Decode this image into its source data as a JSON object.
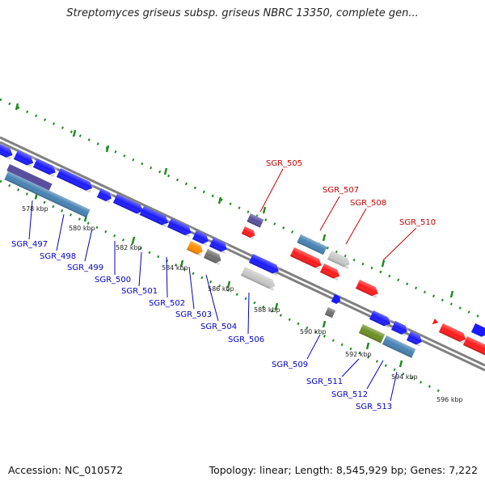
{
  "title": "Streptomyces griseus subsp. griseus NBRC 13350, complete gen...",
  "footer": {
    "accession": "Accession: NC_010572",
    "stats": "Topology: linear; Length: 8,545,929 bp; Genes: 7,222"
  },
  "colors": {
    "forward_label": "#cc0000",
    "reverse_label": "#0000cc",
    "backbone": "#808080",
    "tick": "#1e8c1e"
  },
  "scale_labels": [
    "578 kbp",
    "580 kbp",
    "582 kbp",
    "584 kbp",
    "586 kbp",
    "588 kbp",
    "590 kbp",
    "592 kbp",
    "594 kbp",
    "596 kbp"
  ],
  "gene_labels": {
    "forward": [
      "SGR_505",
      "SGR_507",
      "SGR_508",
      "SGR_510"
    ],
    "reverse": [
      "SGR_497",
      "SGR_498",
      "SGR_499",
      "SGR_500",
      "SGR_501",
      "SGR_502",
      "SGR_503",
      "SGR_504",
      "SGR_506",
      "SGR_509",
      "SGR_511",
      "SGR_512",
      "SGR_513"
    ]
  },
  "features": [
    {
      "name": "top-blue-1",
      "color": "#1a1aff"
    },
    {
      "name": "top-blue-2",
      "color": "#1a1aff"
    },
    {
      "name": "top-blue-3",
      "color": "#1a1aff"
    },
    {
      "name": "top-blue-4",
      "color": "#1a1aff"
    },
    {
      "name": "purple-1",
      "color": "#5a4f9c"
    },
    {
      "name": "steel-1",
      "color": "#4682b4"
    },
    {
      "name": "blue-5",
      "color": "#1a1aff"
    },
    {
      "name": "blue-6",
      "color": "#1a1aff"
    },
    {
      "name": "blue-7",
      "color": "#1a1aff"
    },
    {
      "name": "blue-8",
      "color": "#1a1aff"
    },
    {
      "name": "blue-9",
      "color": "#1a1aff"
    },
    {
      "name": "blue-10",
      "color": "#1a1aff"
    },
    {
      "name": "orange-1",
      "color": "#ff8c00"
    },
    {
      "name": "gray-1",
      "color": "#707070"
    },
    {
      "name": "purple-2",
      "color": "#5a4f9c"
    },
    {
      "name": "red-505",
      "color": "#ff1a1a"
    },
    {
      "name": "blue-11",
      "color": "#1a1aff"
    },
    {
      "name": "lightgray-1",
      "color": "#c8c8c8"
    },
    {
      "name": "steel-507",
      "color": "#4682b4"
    },
    {
      "name": "red-1",
      "color": "#ff1a1a"
    },
    {
      "name": "lightgray-508",
      "color": "#c8c8c8"
    },
    {
      "name": "red-2",
      "color": "#ff1a1a"
    },
    {
      "name": "red-3",
      "color": "#ff1a1a"
    },
    {
      "name": "blue-12",
      "color": "#1a1aff"
    },
    {
      "name": "gray-2",
      "color": "#707070"
    },
    {
      "name": "blue-13",
      "color": "#1a1aff"
    },
    {
      "name": "blue-14",
      "color": "#1a1aff"
    },
    {
      "name": "olive-1",
      "color": "#6b8e23"
    },
    {
      "name": "steel-2",
      "color": "#4682b4"
    },
    {
      "name": "blue-15",
      "color": "#1a1aff"
    },
    {
      "name": "red-4",
      "color": "#ff1a1a"
    },
    {
      "name": "red-5",
      "color": "#ff1a1a"
    },
    {
      "name": "red-6",
      "color": "#ff1a1a"
    },
    {
      "name": "red-7",
      "color": "#ff1a1a"
    },
    {
      "name": "blue-16",
      "color": "#1a1aff"
    }
  ]
}
